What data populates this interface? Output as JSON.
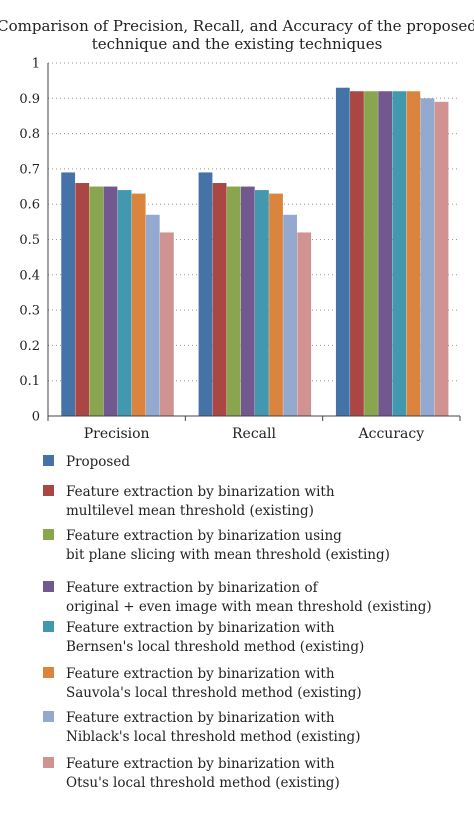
{
  "chart_data": {
    "type": "bar",
    "title": [
      "Comparison of Precision, Recall, and Accuracy of the proposed",
      "technique and the existing techniques"
    ],
    "xlabel": "",
    "ylabel": "",
    "categories": [
      "Precision",
      "Recall",
      "Accuracy"
    ],
    "ylim": [
      0,
      1
    ],
    "yticks": [
      "0",
      "0.1",
      "0.2",
      "0.3",
      "0.4",
      "0.5",
      "0.6",
      "0.7",
      "0.8",
      "0.9",
      "1"
    ],
    "grid": "horizontal dotted",
    "legend_position": "bottom",
    "series": [
      {
        "name": "Proposed",
        "name_lines": [
          "Proposed"
        ],
        "color": "#4572a7",
        "values": [
          0.69,
          0.69,
          0.93
        ]
      },
      {
        "name": "Feature extraction by binarization with multilevel mean threshold (existing)",
        "name_lines": [
          "Feature extraction by binarization with",
          "multilevel mean threshold (existing)"
        ],
        "color": "#aa4643",
        "values": [
          0.66,
          0.66,
          0.92
        ]
      },
      {
        "name": "Feature extraction by binarization using bit plane slicing with mean threshold (existing)",
        "name_lines": [
          "Feature extraction by binarization using",
          "bit plane slicing with mean threshold (existing)"
        ],
        "color": "#89a54e",
        "values": [
          0.65,
          0.65,
          0.92
        ]
      },
      {
        "name": "Feature extraction by binarization of original + even image with mean threshold (existing)",
        "name_lines": [
          "Feature extraction by binarization of",
          "original + even image with mean threshold (existing)"
        ],
        "color": "#71588f",
        "values": [
          0.65,
          0.65,
          0.92
        ]
      },
      {
        "name": "Feature extraction by binarization with Bernsen's local threshold method (existing)",
        "name_lines": [
          "Feature extraction by binarization with",
          "Bernsen's local threshold method (existing)"
        ],
        "color": "#4198af",
        "values": [
          0.64,
          0.64,
          0.92
        ]
      },
      {
        "name": "Feature extraction by binarization with Sauvola's local threshold method (existing)",
        "name_lines": [
          "Feature extraction by binarization with",
          "Sauvola's local threshold method (existing)"
        ],
        "color": "#db843d",
        "values": [
          0.63,
          0.63,
          0.92
        ]
      },
      {
        "name": "Feature extraction by binarization with Niblack's local threshold method (existing)",
        "name_lines": [
          "Feature extraction by binarization with",
          "Niblack's local threshold method (existing)"
        ],
        "color": "#93a9cf",
        "values": [
          0.57,
          0.57,
          0.9
        ]
      },
      {
        "name": "Feature extraction by binarization with Otsu's local threshold method (existing)",
        "name_lines": [
          "Feature extraction by binarization with",
          "Otsu's local threshold method (existing)"
        ],
        "color": "#d19392",
        "values": [
          0.52,
          0.52,
          0.89
        ]
      }
    ]
  }
}
